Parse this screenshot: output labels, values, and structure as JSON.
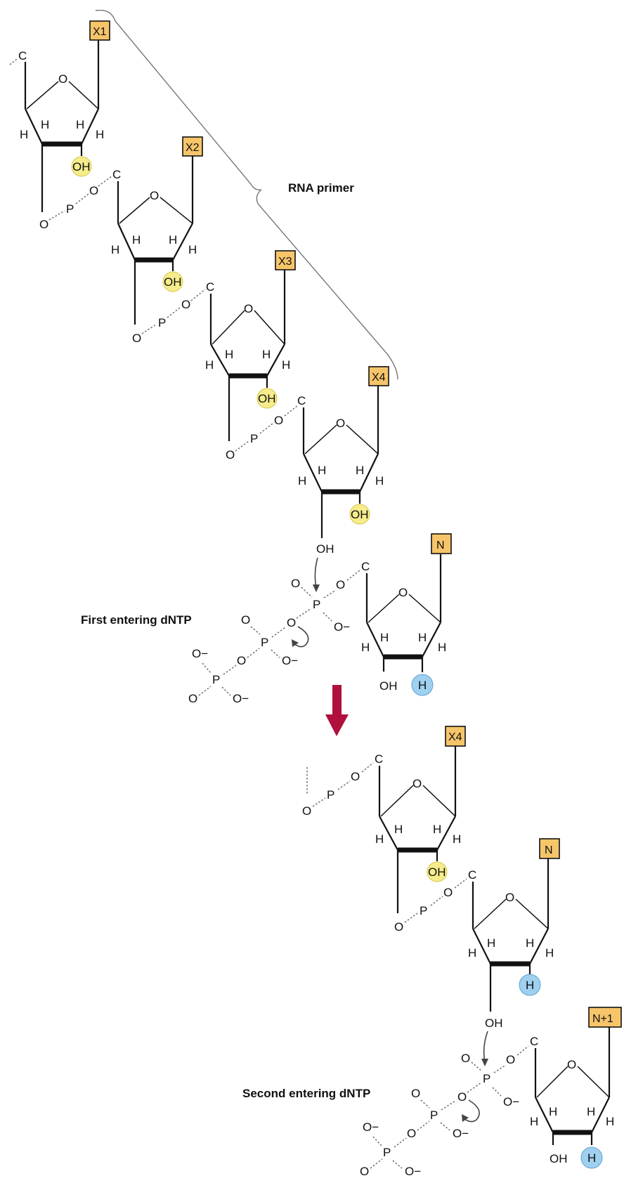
{
  "labels": {
    "rna_primer": "RNA primer",
    "first_dntp": "First entering dNTP",
    "second_dntp": "Second entering dNTP"
  },
  "bases": {
    "x1": "X1",
    "x2": "X2",
    "x3": "X3",
    "x4": "X4",
    "n": "N",
    "x4_product": "X4",
    "n_product": "N",
    "n1": "N+1"
  },
  "atoms": {
    "ring_o": "O",
    "carbon": "C",
    "hydrogen": "H",
    "oh": "OH",
    "phosphorus": "P",
    "oxygen": "O",
    "o_minus": "O−"
  },
  "colors": {
    "base_box": "#f6c56a",
    "ribose_oh_highlight": "#f6ec8c",
    "deoxy_h_highlight": "#9fd0ef",
    "reaction_arrow": "#b0103c"
  }
}
